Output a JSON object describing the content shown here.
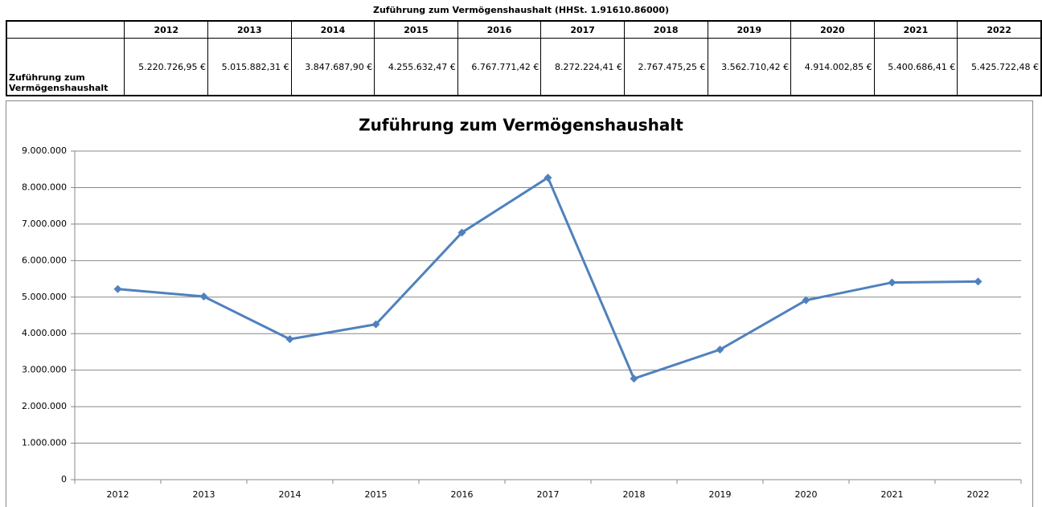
{
  "table": {
    "title": "Zuführung zum Vermögenshaushalt (HHSt. 1.91610.86000)",
    "header": [
      "2012",
      "2013",
      "2014",
      "2015",
      "2016",
      "2017",
      "2018",
      "2019",
      "2020",
      "2021",
      "2022"
    ],
    "row_label": "Zuführung zum Vermögenshaushalt",
    "cells": [
      "5.220.726,95 €",
      "5.015.882,31 €",
      "3.847.687,90 €",
      "4.255.632,47 €",
      "6.767.771,42 €",
      "8.272.224,41 €",
      "2.767.475,25 €",
      "3.562.710,42 €",
      "4.914.002,85 €",
      "5.400.686,41 €",
      "5.425.722,48 €"
    ]
  },
  "chart_data": {
    "type": "line",
    "title": "Zuführung zum Vermögenshaushalt",
    "categories": [
      "2012",
      "2013",
      "2014",
      "2015",
      "2016",
      "2017",
      "2018",
      "2019",
      "2020",
      "2021",
      "2022"
    ],
    "values": [
      5220726.95,
      5015882.31,
      3847687.9,
      4255632.47,
      6767771.42,
      8272224.41,
      2767475.25,
      3562710.42,
      4914002.85,
      5400686.41,
      5425722.48
    ],
    "color": "#4f81bd",
    "grid": true,
    "ylim": [
      0,
      9000000
    ],
    "yticks": [
      0,
      {
        "value": 1000000,
        "label": "1.000.000"
      },
      {
        "value": 2000000,
        "label": "2.000.000"
      },
      {
        "value": 3000000,
        "label": "3.000.000"
      },
      {
        "value": 4000000,
        "label": "4.000.000"
      },
      {
        "value": 5000000,
        "label": "5.000.000"
      },
      {
        "value": 6000000,
        "label": "6.000.000"
      },
      {
        "value": 7000000,
        "label": "7.000.000"
      },
      {
        "value": 8000000,
        "label": "8.000.000"
      },
      {
        "value": 9000000,
        "label": "9.000.000"
      }
    ]
  }
}
